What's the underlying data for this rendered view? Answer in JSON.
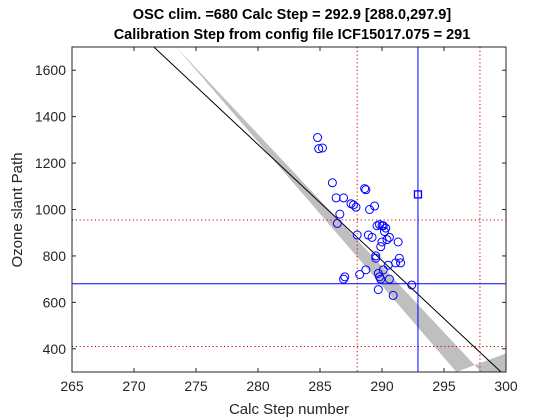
{
  "chart_data": {
    "type": "scatter",
    "title": "OSC clim. =680   Calc Step = 292.9 [288.0,297.9]",
    "subtitle": "Calibration Step from config file ICF15017.075 = 291",
    "xlabel": "Calc Step number",
    "ylabel": "Ozone slant Path",
    "xlim": [
      265,
      300
    ],
    "ylim": [
      300,
      1700
    ],
    "xticks": [
      265,
      270,
      275,
      280,
      285,
      290,
      295,
      300
    ],
    "yticks": [
      400,
      600,
      800,
      1000,
      1200,
      1400,
      1600
    ],
    "grid": false,
    "legend": "none",
    "colors": {
      "points": "#0000ff",
      "fit_line": "#000000",
      "band": "#bfbfbf",
      "blue_lines": "#0000ff",
      "dotted_lines": "#cc0000"
    },
    "fit_line": {
      "x": [
        271.6,
        299.6
      ],
      "y": [
        1700,
        300
      ]
    },
    "confidence_band": {
      "x": [
        269,
        273.4,
        298,
        300,
        300,
        296,
        273.4
      ],
      "y": [
        1540,
        1700,
        300,
        300,
        380,
        300,
        1700
      ]
    },
    "vertical_lines": {
      "calc_step": 292.9,
      "interval": [
        288.0,
        297.9
      ]
    },
    "horizontal_lines": {
      "osc_clim": 680,
      "interval": [
        410,
        955
      ]
    },
    "square_marker": {
      "x": 292.9,
      "y": 1065
    },
    "series": [
      {
        "x": [
          284.8,
          285.2,
          284.9,
          286.0,
          286.3,
          286.9,
          286.6,
          287.5,
          287.7,
          287.9,
          288.6,
          288.7,
          289.0,
          289.4,
          289.8,
          290.0,
          290.1,
          290.3,
          290.2,
          290.4,
          290.6,
          291.3,
          291.5,
          290.0,
          289.9,
          290.5,
          291.4,
          291.1,
          290.1,
          289.5,
          289.7,
          289.8,
          288.7,
          288.2,
          287.0,
          286.4,
          288.9,
          289.2,
          289.5,
          289.7,
          290.6,
          290.9,
          292.4,
          289.9,
          286.9,
          289.6,
          288.0
        ],
        "y": [
          1310,
          1265,
          1262,
          1115,
          1050,
          1050,
          980,
          1025,
          1020,
          1010,
          1090,
          1085,
          1000,
          1015,
          935,
          930,
          930,
          920,
          905,
          870,
          880,
          860,
          770,
          860,
          840,
          760,
          790,
          770,
          740,
          800,
          725,
          710,
          740,
          720,
          710,
          940,
          890,
          880,
          790,
          655,
          700,
          630,
          675,
          700,
          700,
          930,
          890
        ]
      }
    ]
  }
}
